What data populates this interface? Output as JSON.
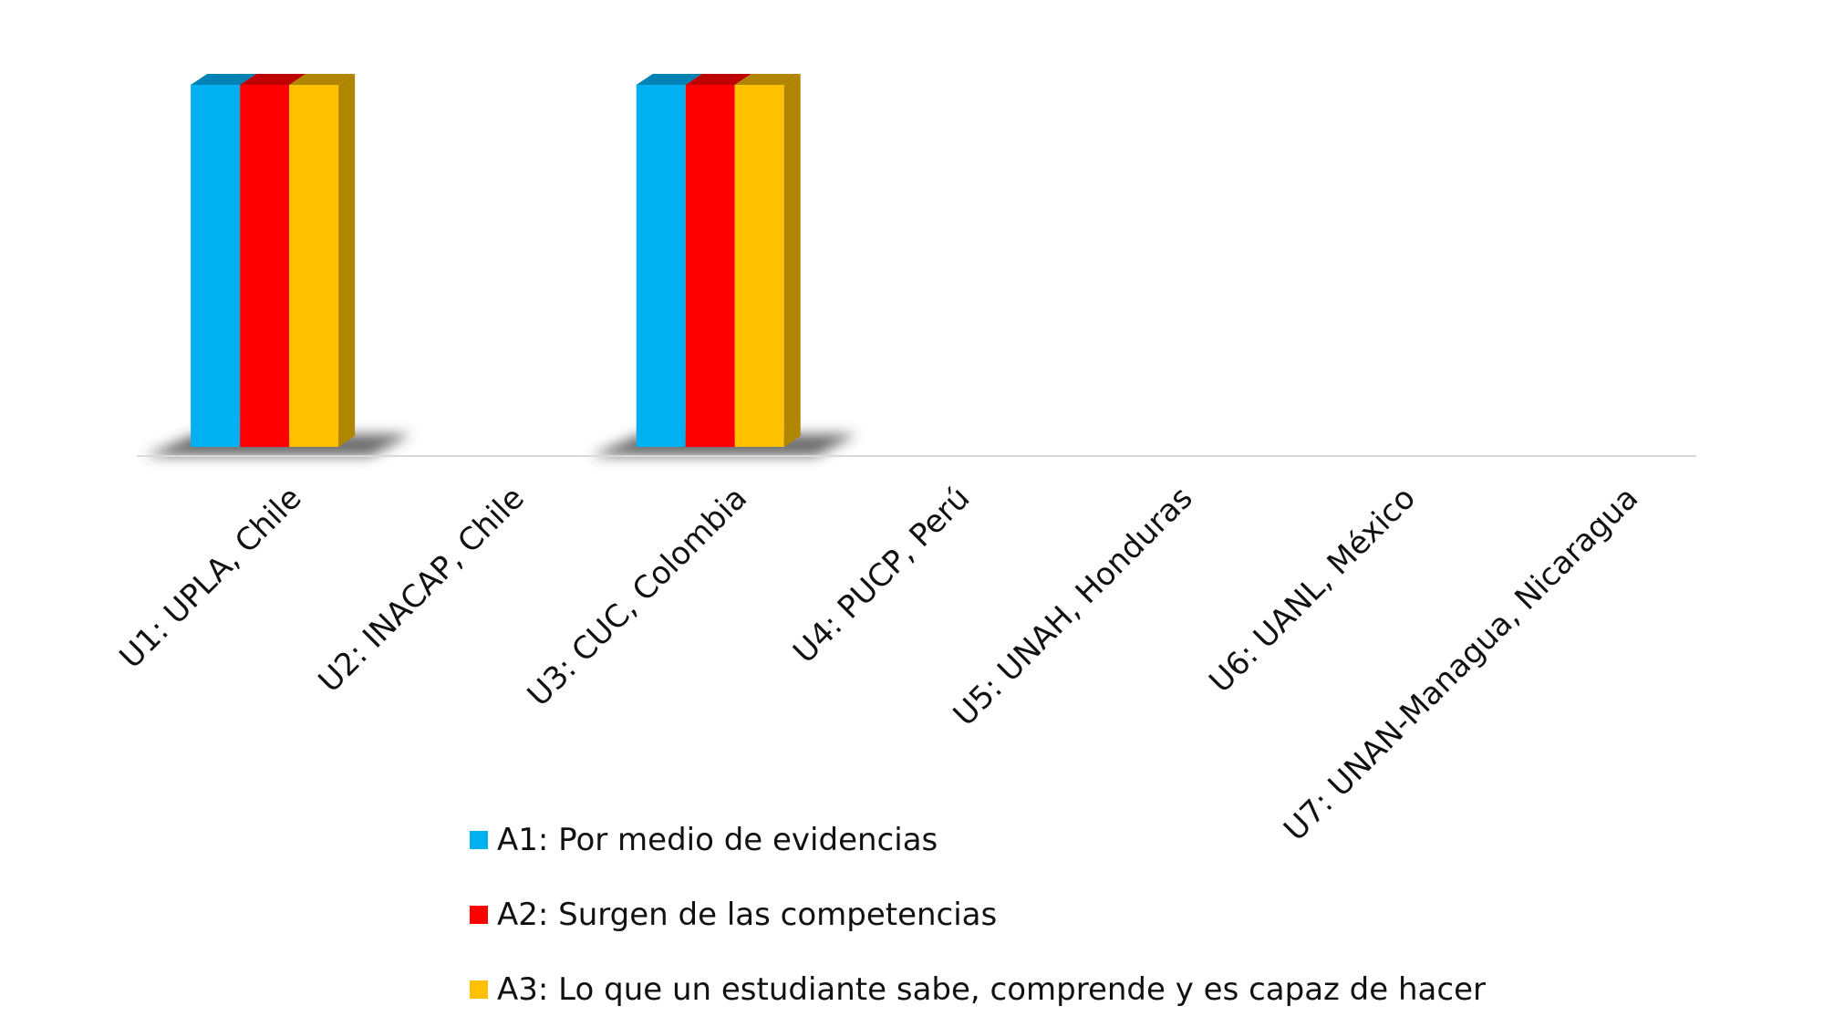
{
  "chart_data": {
    "type": "bar",
    "title": "",
    "xlabel": "",
    "ylabel": "",
    "ylim": [
      0,
      1
    ],
    "grid": false,
    "legend_position": "bottom",
    "style": "3d-clustered-column",
    "categories": [
      "U1: UPLA, Chile",
      "U2: INACAP, Chile",
      "U3: CUC, Colombia",
      "U4: PUCP, Perú",
      "U5: UNAH, Honduras",
      "U6: UANL, México",
      "U7: UNAN-Managua, Nicaragua"
    ],
    "series": [
      {
        "name": "A1: Por medio de evidencias",
        "color": "#00B0F0",
        "side_color": "#0083B4",
        "values": [
          1,
          0,
          1,
          0,
          0,
          0,
          0
        ]
      },
      {
        "name": "A2: Surgen de las competencias",
        "color": "#FF0000",
        "side_color": "#BE0000",
        "values": [
          1,
          0,
          1,
          0,
          0,
          0,
          0
        ]
      },
      {
        "name": "A3: Lo que un estudiante sabe, comprende y es capaz de hacer",
        "color": "#FFC000",
        "side_color": "#B08600",
        "values": [
          1,
          0,
          1,
          0,
          0,
          0,
          0
        ]
      }
    ]
  }
}
